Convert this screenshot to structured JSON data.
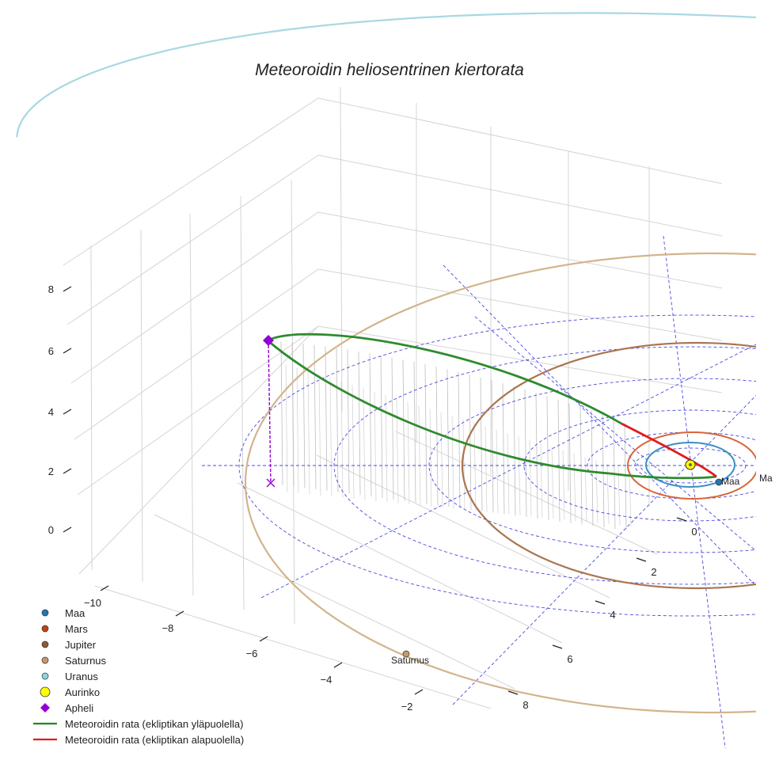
{
  "chart_data": {
    "type": "3d-line",
    "title": "Meteoroidin heliosentrinen kiertorata",
    "xlabel": "",
    "ylabel": "",
    "zlabel": "",
    "x_ticks": [
      "−10",
      "−8",
      "−6",
      "−4",
      "−2"
    ],
    "y_ticks": [
      "0",
      "2",
      "4",
      "6",
      "8"
    ],
    "z_ticks": [
      "0",
      "2",
      "4",
      "6",
      "8"
    ],
    "planets": [
      {
        "name": "Maa",
        "color": "#1f77b4",
        "orbit_color": "#3b8fc4",
        "label": "Maa"
      },
      {
        "name": "Mars",
        "color": "#c1440e",
        "orbit_color": "#d9663a",
        "label": "Ma"
      },
      {
        "name": "Jupiter",
        "color": "#8b5a3c",
        "orbit_color": "#a9754f",
        "label": ""
      },
      {
        "name": "Saturnus",
        "color": "#c49a6c",
        "orbit_color": "#d2b48c",
        "label": "Saturnus"
      },
      {
        "name": "Uranus",
        "color": "#8fd3e0",
        "orbit_color": "#a8d8e2",
        "label": ""
      }
    ],
    "sun": {
      "name": "Aurinko",
      "color": "#ffff00"
    },
    "aphelion": {
      "name": "Apheli",
      "color": "#9400d3"
    },
    "series": [
      {
        "name": "Meteoroidin rata (ekliptikan yläpuolella)",
        "color": "#2e8b2e"
      },
      {
        "name": "Meteoroidin rata (ekliptikan alapuolella)",
        "color": "#e31a1c"
      }
    ],
    "legend_position": "bottom-left",
    "grid": true
  },
  "legend": [
    {
      "label": "Maa",
      "kind": "dot",
      "color": "#1f77b4"
    },
    {
      "label": "Mars",
      "kind": "dot",
      "color": "#c1440e"
    },
    {
      "label": "Jupiter",
      "kind": "dot",
      "color": "#8b5a3c"
    },
    {
      "label": "Saturnus",
      "kind": "dot",
      "color": "#c49a6c"
    },
    {
      "label": "Uranus",
      "kind": "dot",
      "color": "#8fd3e0"
    },
    {
      "label": "Aurinko",
      "kind": "bigdot",
      "color": "#ffff00"
    },
    {
      "label": "Apheli",
      "kind": "diamond",
      "color": "#9400d3"
    },
    {
      "label": "Meteoroidin rata (ekliptikan yläpuolella)",
      "kind": "line",
      "color": "#1a8c1a"
    },
    {
      "label": "Meteoroidin rata (ekliptikan alapuolella)",
      "kind": "line",
      "color": "#e31a1c"
    }
  ]
}
